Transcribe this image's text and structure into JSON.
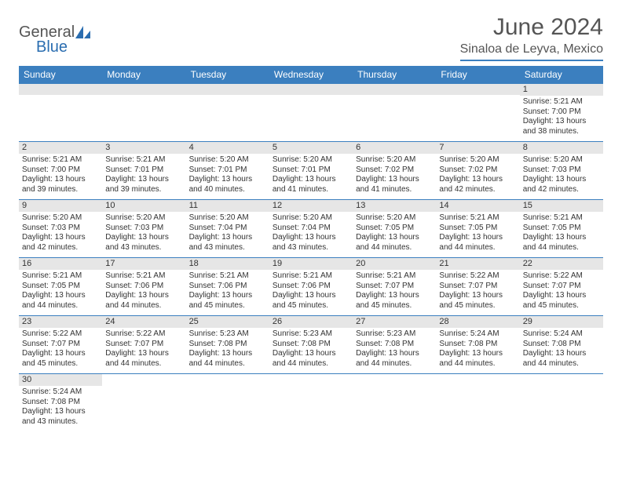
{
  "brand": {
    "part1": "General",
    "part2": "Blue"
  },
  "title": "June 2024",
  "location": "Sinaloa de Leyva, Mexico",
  "colors": {
    "accent": "#3b7fbf",
    "header_text": "#555",
    "cell_bg": "#e6e6e6"
  },
  "weekdays": [
    "Sunday",
    "Monday",
    "Tuesday",
    "Wednesday",
    "Thursday",
    "Friday",
    "Saturday"
  ],
  "labels": {
    "sunrise": "Sunrise:",
    "sunset": "Sunset:",
    "daylight": "Daylight:"
  },
  "weeks": [
    [
      null,
      null,
      null,
      null,
      null,
      null,
      {
        "d": "1",
        "sr": "5:21 AM",
        "ss": "7:00 PM",
        "dl": "13 hours and 38 minutes."
      }
    ],
    [
      {
        "d": "2",
        "sr": "5:21 AM",
        "ss": "7:00 PM",
        "dl": "13 hours and 39 minutes."
      },
      {
        "d": "3",
        "sr": "5:21 AM",
        "ss": "7:01 PM",
        "dl": "13 hours and 39 minutes."
      },
      {
        "d": "4",
        "sr": "5:20 AM",
        "ss": "7:01 PM",
        "dl": "13 hours and 40 minutes."
      },
      {
        "d": "5",
        "sr": "5:20 AM",
        "ss": "7:01 PM",
        "dl": "13 hours and 41 minutes."
      },
      {
        "d": "6",
        "sr": "5:20 AM",
        "ss": "7:02 PM",
        "dl": "13 hours and 41 minutes."
      },
      {
        "d": "7",
        "sr": "5:20 AM",
        "ss": "7:02 PM",
        "dl": "13 hours and 42 minutes."
      },
      {
        "d": "8",
        "sr": "5:20 AM",
        "ss": "7:03 PM",
        "dl": "13 hours and 42 minutes."
      }
    ],
    [
      {
        "d": "9",
        "sr": "5:20 AM",
        "ss": "7:03 PM",
        "dl": "13 hours and 42 minutes."
      },
      {
        "d": "10",
        "sr": "5:20 AM",
        "ss": "7:03 PM",
        "dl": "13 hours and 43 minutes."
      },
      {
        "d": "11",
        "sr": "5:20 AM",
        "ss": "7:04 PM",
        "dl": "13 hours and 43 minutes."
      },
      {
        "d": "12",
        "sr": "5:20 AM",
        "ss": "7:04 PM",
        "dl": "13 hours and 43 minutes."
      },
      {
        "d": "13",
        "sr": "5:20 AM",
        "ss": "7:05 PM",
        "dl": "13 hours and 44 minutes."
      },
      {
        "d": "14",
        "sr": "5:21 AM",
        "ss": "7:05 PM",
        "dl": "13 hours and 44 minutes."
      },
      {
        "d": "15",
        "sr": "5:21 AM",
        "ss": "7:05 PM",
        "dl": "13 hours and 44 minutes."
      }
    ],
    [
      {
        "d": "16",
        "sr": "5:21 AM",
        "ss": "7:05 PM",
        "dl": "13 hours and 44 minutes."
      },
      {
        "d": "17",
        "sr": "5:21 AM",
        "ss": "7:06 PM",
        "dl": "13 hours and 44 minutes."
      },
      {
        "d": "18",
        "sr": "5:21 AM",
        "ss": "7:06 PM",
        "dl": "13 hours and 45 minutes."
      },
      {
        "d": "19",
        "sr": "5:21 AM",
        "ss": "7:06 PM",
        "dl": "13 hours and 45 minutes."
      },
      {
        "d": "20",
        "sr": "5:21 AM",
        "ss": "7:07 PM",
        "dl": "13 hours and 45 minutes."
      },
      {
        "d": "21",
        "sr": "5:22 AM",
        "ss": "7:07 PM",
        "dl": "13 hours and 45 minutes."
      },
      {
        "d": "22",
        "sr": "5:22 AM",
        "ss": "7:07 PM",
        "dl": "13 hours and 45 minutes."
      }
    ],
    [
      {
        "d": "23",
        "sr": "5:22 AM",
        "ss": "7:07 PM",
        "dl": "13 hours and 45 minutes."
      },
      {
        "d": "24",
        "sr": "5:22 AM",
        "ss": "7:07 PM",
        "dl": "13 hours and 44 minutes."
      },
      {
        "d": "25",
        "sr": "5:23 AM",
        "ss": "7:08 PM",
        "dl": "13 hours and 44 minutes."
      },
      {
        "d": "26",
        "sr": "5:23 AM",
        "ss": "7:08 PM",
        "dl": "13 hours and 44 minutes."
      },
      {
        "d": "27",
        "sr": "5:23 AM",
        "ss": "7:08 PM",
        "dl": "13 hours and 44 minutes."
      },
      {
        "d": "28",
        "sr": "5:24 AM",
        "ss": "7:08 PM",
        "dl": "13 hours and 44 minutes."
      },
      {
        "d": "29",
        "sr": "5:24 AM",
        "ss": "7:08 PM",
        "dl": "13 hours and 44 minutes."
      }
    ],
    [
      {
        "d": "30",
        "sr": "5:24 AM",
        "ss": "7:08 PM",
        "dl": "13 hours and 43 minutes."
      },
      null,
      null,
      null,
      null,
      null,
      null
    ]
  ]
}
